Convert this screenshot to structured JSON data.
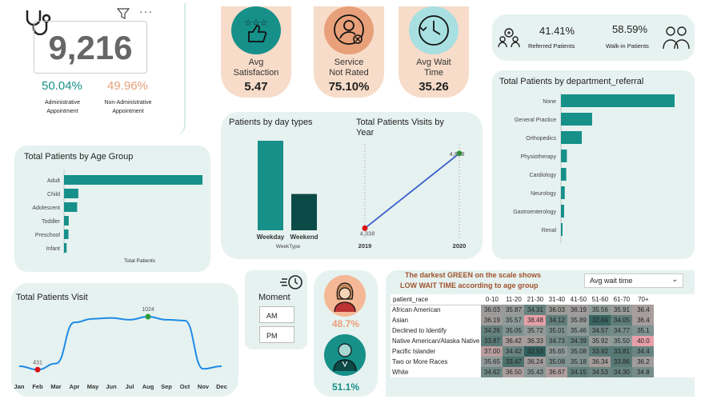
{
  "top_left": {
    "total": "9,216",
    "admin_pct": "50.04%",
    "admin_label_1": "Administrative",
    "admin_label_2": "Appointment",
    "non_admin_pct": "49.96%",
    "non_admin_label_1": "Non-Administrative",
    "non_admin_label_2": "Appointment"
  },
  "kpis": [
    {
      "label_1": "Avg",
      "label_2": "Satisfaction",
      "value": "5.47"
    },
    {
      "label_1": "Service",
      "label_2": "Not Rated",
      "value": "75.10%"
    },
    {
      "label_1": "Avg Wait",
      "label_2": "Time",
      "value": "35.26"
    }
  ],
  "referral_box": {
    "referred_pct": "41.41%",
    "referred_label": "Referred Patients",
    "walkin_pct": "58.59%",
    "walkin_label": "Walk-in Patients"
  },
  "department_chart": {
    "title": "Total Patients by department_referral",
    "chart_data": {
      "type": "bar",
      "orientation": "horizontal",
      "categories": [
        "None",
        "General Practice",
        "Orthopedics",
        "Physiotherapy",
        "Cardiology",
        "Neurology",
        "Gastroenterology",
        "Renal"
      ],
      "values": [
        5400,
        1480,
        990,
        280,
        250,
        180,
        150,
        60
      ]
    }
  },
  "age_chart": {
    "title": "Total Patients by Age Group",
    "xlabel": "Total Patients",
    "chart_data": {
      "type": "bar",
      "orientation": "horizontal",
      "categories": [
        "Adult",
        "Child",
        "Adolescent",
        "Toddler",
        "Preschool",
        "Infant"
      ],
      "values": [
        5900,
        610,
        560,
        200,
        190,
        110
      ]
    }
  },
  "day_types_chart": {
    "title": "Patients by day types",
    "xlabel": "WeekType",
    "chart_data": {
      "type": "bar",
      "categories": [
        "Weekday",
        "Weekend"
      ],
      "values": [
        6560,
        2660
      ]
    }
  },
  "visits_year_chart": {
    "title_1": "Total Patients Visits by",
    "title_2": "Year",
    "chart_data": {
      "type": "line",
      "x": [
        "2019",
        "2020"
      ],
      "values": [
        4338,
        4878
      ],
      "labels": [
        "4,338",
        "4,878"
      ]
    }
  },
  "monthly_chart": {
    "title": "Total Patients Visit",
    "chart_data": {
      "type": "line",
      "categories": [
        "Jan",
        "Feb",
        "Mar",
        "Apr",
        "May",
        "Jun",
        "Jul",
        "Aug",
        "Sep",
        "Oct",
        "Nov",
        "Dec"
      ],
      "values": [
        470,
        431,
        500,
        960,
        1000,
        1010,
        990,
        1024,
        990,
        980,
        440,
        470
      ],
      "labels": {
        "min": "431",
        "max": "1024"
      }
    }
  },
  "moment": {
    "label": "Moment",
    "options": [
      "AM",
      "PM"
    ]
  },
  "gender": {
    "female_pct": "48.7%",
    "male_pct": "51.1%"
  },
  "heatmap": {
    "note_1": "The darkest GREEN on the scale shows",
    "note_2": "LOW WAIT TIME according to age group",
    "dropdown_value": "Avg wait time",
    "row_header": "patient_race",
    "columns": [
      "0-10",
      "11-20",
      "21-30",
      "31-40",
      "41-50",
      "51-60",
      "61-70",
      "70+"
    ],
    "rows": [
      {
        "name": "African American",
        "values": [
          "36.03",
          "35.87",
          "34.31",
          "36.03",
          "36.19",
          "35.56",
          "35.91",
          "36.4"
        ]
      },
      {
        "name": "Asian",
        "values": [
          "36.19",
          "35.57",
          "38.48",
          "34.12",
          "35.89",
          "32.84",
          "34.05",
          "36.4"
        ]
      },
      {
        "name": "Declined to Identify",
        "values": [
          "34.26",
          "35.05",
          "35.72",
          "35.01",
          "35.46",
          "34.57",
          "34.77",
          "35.1"
        ]
      },
      {
        "name": "Native American/Alaska Native",
        "values": [
          "33.87",
          "36.42",
          "36.33",
          "34.73",
          "34.39",
          "35.92",
          "35.50",
          "40.0"
        ]
      },
      {
        "name": "Pacific Islander",
        "values": [
          "37.00",
          "34.42",
          "32.53",
          "35.65",
          "35.08",
          "33.92",
          "33.81",
          "34.4"
        ]
      },
      {
        "name": "Two or More Races",
        "values": [
          "35.65",
          "33.47",
          "36.24",
          "35.08",
          "35.18",
          "36.34",
          "33.86",
          "36.2"
        ]
      },
      {
        "name": "White",
        "values": [
          "34.62",
          "36.50",
          "35.43",
          "36.67",
          "34.15",
          "34.53",
          "34.30",
          "34.8"
        ]
      }
    ]
  },
  "colors": {
    "teal": "#169089",
    "dark_teal": "#0c4a47",
    "peach": "#f7dcc9",
    "card_bg": "#e6f2f0",
    "orange_text": "#e8a07a",
    "heat_red": "#e8a0a8",
    "heat_green": "#2e5e5a",
    "note_brown": "#a0522d"
  }
}
